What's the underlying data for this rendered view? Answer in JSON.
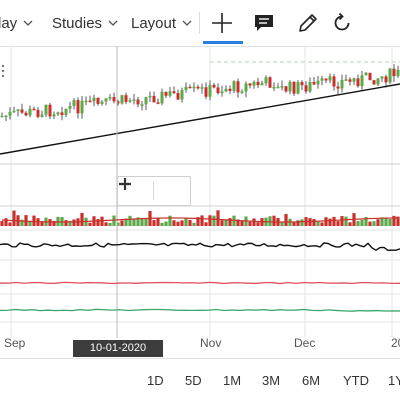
{
  "toolbar": {
    "display_label": "lay",
    "studies_label": "Studies",
    "layout_label": "Layout"
  },
  "icons": {
    "crosshair": "crosshair-icon",
    "comment": "comment-icon",
    "draw": "pencil-icon",
    "reset": "reset-icon",
    "chevron": "chevron-down-icon",
    "zoom_out": "minus-icon",
    "zoom_in": "plus-icon"
  },
  "time_axis": {
    "labels": [
      "Sep",
      "Nov",
      "Dec",
      "20"
    ],
    "crosshair_date": "10-01-2020"
  },
  "ranges": [
    "1D",
    "5D",
    "1M",
    "3M",
    "6M",
    "YTD",
    "1Y"
  ],
  "colors": {
    "up": "#5ea84a",
    "down": "#c8312b",
    "trendline": "#111111",
    "ma_line": "#c8312b",
    "accent": "#2a7de1",
    "crosshair_line": "#2a7de1",
    "oscillator": "#111111",
    "red_line": "#e0505a",
    "green_line": "#3aa86a"
  }
}
